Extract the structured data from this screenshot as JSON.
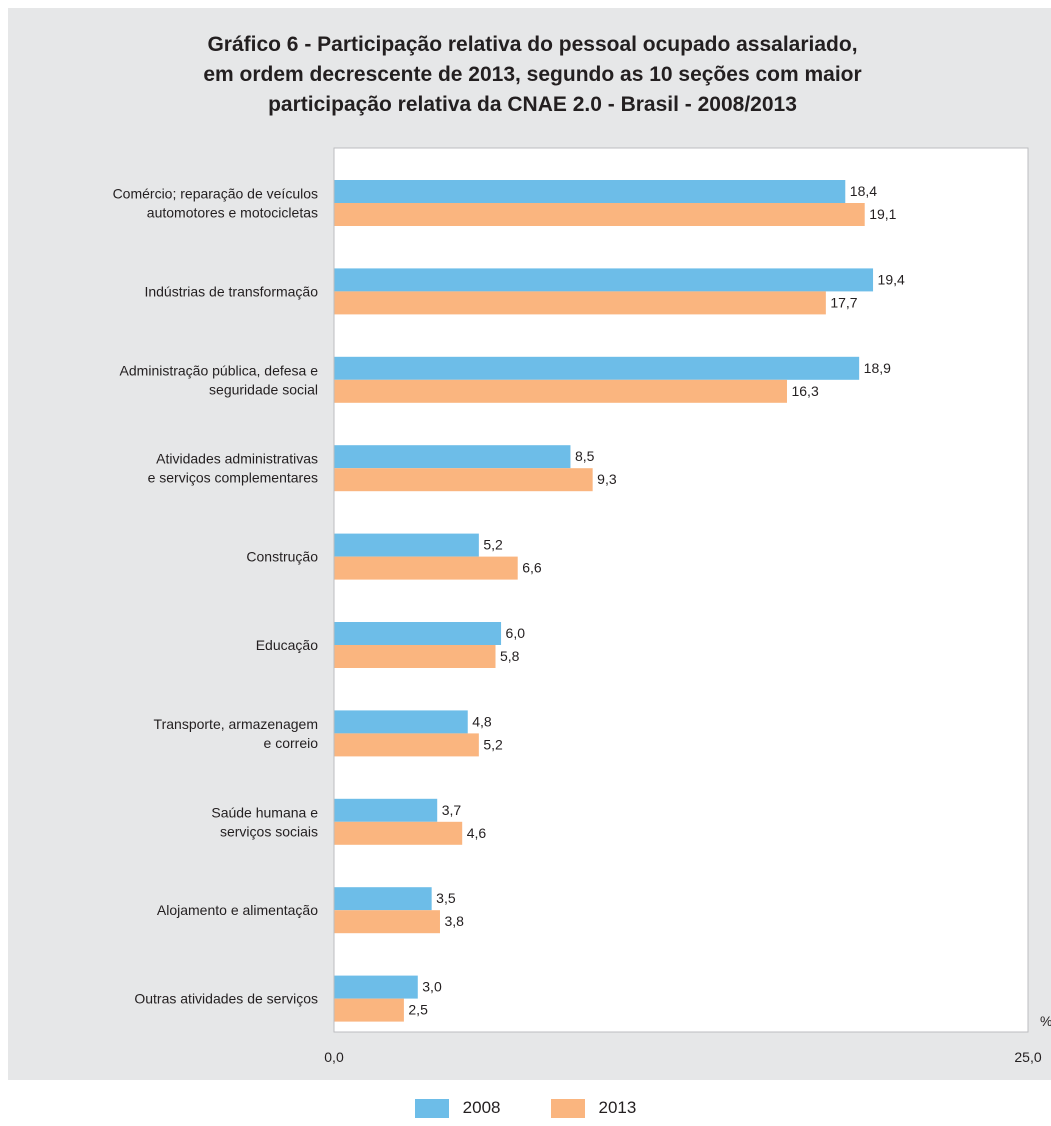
{
  "chart_data": {
    "type": "bar",
    "orientation": "horizontal",
    "title_lines": [
      "Gráfico 6 - Participação relativa do pessoal ocupado assalariado,",
      "em ordem decrescente de 2013, segundo as 10 seções com maior",
      "participação relativa da CNAE 2.0 - Brasil - 2008/2013"
    ],
    "categories": [
      [
        "Comércio; reparação de veículos",
        "automotores e motocicletas"
      ],
      [
        "Indústrias de transformação"
      ],
      [
        "Administração pública, defesa e",
        "seguridade social"
      ],
      [
        "Atividades administrativas",
        "e serviços complementares"
      ],
      [
        "Construção"
      ],
      [
        "Educação"
      ],
      [
        "Transporte, armazenagem",
        "e correio"
      ],
      [
        "Saúde humana e",
        "serviços sociais"
      ],
      [
        "Alojamento e alimentação"
      ],
      [
        "Outras atividades de serviços"
      ]
    ],
    "series": [
      {
        "name": "2008",
        "color": "#6dbde8",
        "values": [
          18.4,
          19.4,
          18.9,
          8.5,
          5.2,
          6.0,
          4.8,
          3.7,
          3.5,
          3.0
        ],
        "labels": [
          "18,4",
          "19,4",
          "18,9",
          "8,5",
          "5,2",
          "6,0",
          "4,8",
          "3,7",
          "3,5",
          "3,0"
        ]
      },
      {
        "name": "2013",
        "color": "#fab57f",
        "values": [
          19.1,
          17.7,
          16.3,
          9.3,
          6.6,
          5.8,
          5.2,
          4.6,
          3.8,
          2.5
        ],
        "labels": [
          "19,1",
          "17,7",
          "16,3",
          "9,3",
          "6,6",
          "5,8",
          "5,2",
          "4,6",
          "3,8",
          "2,5"
        ]
      }
    ],
    "xlim": [
      0,
      25
    ],
    "xticks": [
      "0,0",
      "25,0"
    ],
    "xunit": "%",
    "grid": false,
    "legend_position": "bottom"
  }
}
